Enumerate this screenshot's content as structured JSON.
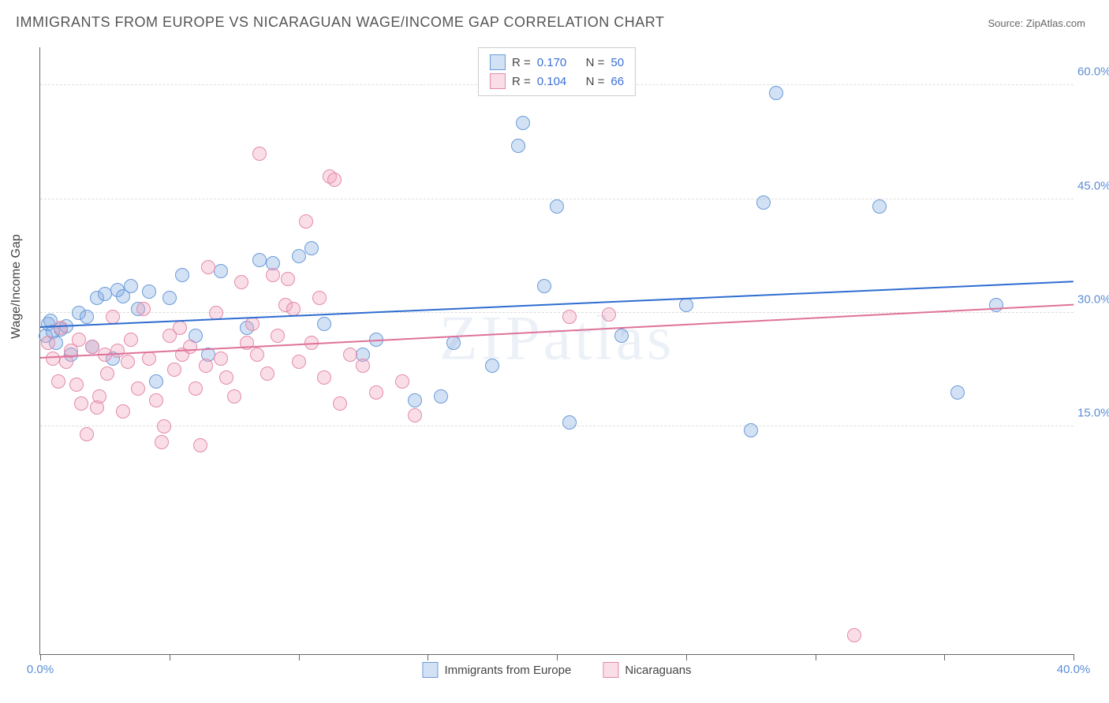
{
  "title": "IMMIGRANTS FROM EUROPE VS NICARAGUAN WAGE/INCOME GAP CORRELATION CHART",
  "source_label": "Source: ",
  "source_name": "ZipAtlas.com",
  "ylabel": "Wage/Income Gap",
  "watermark": "ZIPatlas",
  "chart": {
    "type": "scatter",
    "xlim": [
      0,
      40
    ],
    "ylim": [
      -15,
      65
    ],
    "xticks": [
      0,
      5,
      10,
      15,
      20,
      25,
      30,
      35,
      40
    ],
    "xtick_labels": {
      "0": "0.0%",
      "40": "40.0%"
    },
    "yticks": [
      15,
      30,
      45,
      60
    ],
    "ytick_labels": {
      "15": "15.0%",
      "30": "30.0%",
      "45": "45.0%",
      "60": "60.0%"
    },
    "ytick_color": "#5b8dd6",
    "xtick_color": "#5b8dd6",
    "grid_color": "#dddddd",
    "point_radius": 9,
    "background": "#ffffff"
  },
  "series": [
    {
      "name": "Immigrants from Europe",
      "fill": "rgba(130,170,225,0.35)",
      "stroke": "#6a9bd8",
      "trend_color": "#2e6cd0",
      "R": "0.170",
      "N": "50",
      "trend": {
        "x1": 0,
        "y1": 28,
        "x2": 40,
        "y2": 34
      },
      "points": [
        [
          0.2,
          27
        ],
        [
          0.3,
          28.5
        ],
        [
          0.4,
          29
        ],
        [
          0.5,
          27.5
        ],
        [
          0.6,
          26
        ],
        [
          0.8,
          27.8
        ],
        [
          1.0,
          28.2
        ],
        [
          1.2,
          24.5
        ],
        [
          1.5,
          30
        ],
        [
          1.8,
          29.5
        ],
        [
          2.0,
          25.5
        ],
        [
          2.2,
          32
        ],
        [
          2.5,
          32.5
        ],
        [
          2.8,
          24
        ],
        [
          3.0,
          33
        ],
        [
          3.2,
          32.2
        ],
        [
          3.5,
          33.5
        ],
        [
          3.8,
          30.5
        ],
        [
          4.2,
          32.8
        ],
        [
          4.5,
          21
        ],
        [
          5.0,
          32
        ],
        [
          5.5,
          35
        ],
        [
          6.0,
          27
        ],
        [
          6.5,
          24.5
        ],
        [
          7.0,
          35.5
        ],
        [
          8.0,
          28
        ],
        [
          8.5,
          37
        ],
        [
          9.0,
          36.5
        ],
        [
          10.0,
          37.5
        ],
        [
          10.5,
          38.5
        ],
        [
          11.0,
          28.5
        ],
        [
          12.5,
          24.5
        ],
        [
          13.0,
          26.5
        ],
        [
          14.5,
          18.5
        ],
        [
          15.5,
          19
        ],
        [
          16.0,
          26
        ],
        [
          17.5,
          23
        ],
        [
          18.5,
          52
        ],
        [
          18.7,
          55
        ],
        [
          19.5,
          33.5
        ],
        [
          20.0,
          44
        ],
        [
          20.5,
          15.5
        ],
        [
          22.5,
          27
        ],
        [
          25.0,
          31
        ],
        [
          27.5,
          14.5
        ],
        [
          28.0,
          44.5
        ],
        [
          28.5,
          59
        ],
        [
          32.5,
          44
        ],
        [
          35.5,
          19.5
        ],
        [
          37.0,
          31
        ]
      ]
    },
    {
      "name": "Nicaraguans",
      "fill": "rgba(240,160,185,0.35)",
      "stroke": "#e48aa8",
      "trend_color": "#de7299",
      "R": "0.104",
      "N": "66",
      "trend": {
        "x1": 0,
        "y1": 24,
        "x2": 40,
        "y2": 31
      },
      "points": [
        [
          0.3,
          26
        ],
        [
          0.5,
          24
        ],
        [
          0.7,
          21
        ],
        [
          0.8,
          28
        ],
        [
          1.0,
          23.5
        ],
        [
          1.2,
          25
        ],
        [
          1.4,
          20.5
        ],
        [
          1.5,
          26.5
        ],
        [
          1.6,
          18
        ],
        [
          1.8,
          14
        ],
        [
          2.0,
          25.5
        ],
        [
          2.2,
          17.5
        ],
        [
          2.3,
          19
        ],
        [
          2.5,
          24.5
        ],
        [
          2.6,
          22
        ],
        [
          2.8,
          29.5
        ],
        [
          3.0,
          25
        ],
        [
          3.2,
          17
        ],
        [
          3.4,
          23.5
        ],
        [
          3.5,
          26.5
        ],
        [
          3.8,
          20
        ],
        [
          4.0,
          30.5
        ],
        [
          4.2,
          24
        ],
        [
          4.5,
          18.5
        ],
        [
          4.7,
          13
        ],
        [
          4.8,
          15
        ],
        [
          5.0,
          27
        ],
        [
          5.2,
          22.5
        ],
        [
          5.4,
          28
        ],
        [
          5.5,
          24.5
        ],
        [
          5.8,
          25.5
        ],
        [
          6.0,
          20
        ],
        [
          6.2,
          12.5
        ],
        [
          6.4,
          23
        ],
        [
          6.5,
          36
        ],
        [
          6.8,
          30
        ],
        [
          7.0,
          24
        ],
        [
          7.2,
          21.5
        ],
        [
          7.5,
          19
        ],
        [
          7.8,
          34
        ],
        [
          8.0,
          26
        ],
        [
          8.2,
          28.5
        ],
        [
          8.4,
          24.5
        ],
        [
          8.5,
          51
        ],
        [
          8.8,
          22
        ],
        [
          9.0,
          35
        ],
        [
          9.2,
          27
        ],
        [
          9.5,
          31
        ],
        [
          9.6,
          34.5
        ],
        [
          9.8,
          30.5
        ],
        [
          10.0,
          23.5
        ],
        [
          10.3,
          42
        ],
        [
          10.5,
          26
        ],
        [
          10.8,
          32
        ],
        [
          11.0,
          21.5
        ],
        [
          11.2,
          48
        ],
        [
          11.4,
          47.5
        ],
        [
          11.6,
          18
        ],
        [
          12.0,
          24.5
        ],
        [
          12.5,
          23
        ],
        [
          13.0,
          19.5
        ],
        [
          14.0,
          21
        ],
        [
          14.5,
          16.5
        ],
        [
          20.5,
          29.5
        ],
        [
          22.0,
          29.8
        ],
        [
          31.5,
          -12.5
        ]
      ]
    }
  ],
  "legend_top": {
    "r_label": "R =",
    "n_label": "N ="
  },
  "legend_bottom": [
    {
      "label": "Immigrants from Europe",
      "swatch": 0
    },
    {
      "label": "Nicaraguans",
      "swatch": 1
    }
  ]
}
